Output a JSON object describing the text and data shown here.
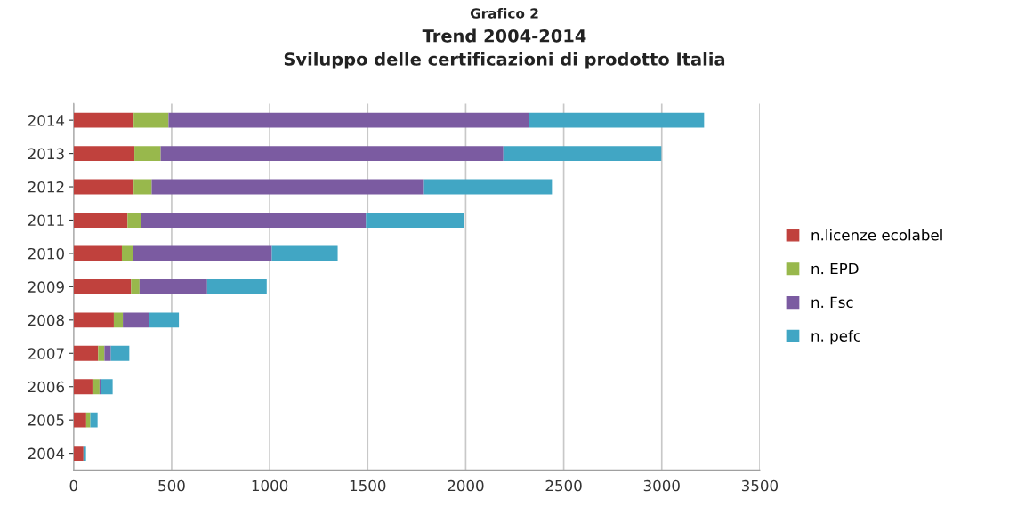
{
  "chart_data": {
    "type": "bar",
    "orientation": "horizontal",
    "stacked": true,
    "title": "Trend 2004-2014\nSviluppo delle certificazioni di prodotto Italia",
    "annotations": [
      "Grafico 2"
    ],
    "categories": [
      "2014",
      "2013",
      "2012",
      "2011",
      "2010",
      "2009",
      "2008",
      "2007",
      "2006",
      "2005",
      "2004"
    ],
    "series": [
      {
        "name": "n.licenze ecolabel",
        "color": "#c0413d",
        "values": [
          306,
          310,
          306,
          275,
          246,
          293,
          205,
          125,
          96,
          64,
          50
        ]
      },
      {
        "name": "n. EPD",
        "color": "#98b84c",
        "values": [
          178,
          134,
          92,
          68,
          56,
          43,
          46,
          32,
          36,
          21,
          null
        ]
      },
      {
        "name": "n. Fsc",
        "color": "#7b5ba1",
        "values": [
          1840,
          1748,
          1385,
          1148,
          709,
          345,
          132,
          33,
          5,
          null,
          0
        ]
      },
      {
        "name": "n. pefc",
        "color": "#41a6c4",
        "values": [
          892,
          806,
          657,
          500,
          336,
          304,
          154,
          94,
          62,
          37,
          13
        ]
      }
    ],
    "xlim": [
      0,
      3500
    ],
    "xticks": [
      0,
      500,
      1000,
      1500,
      2000,
      2500,
      3000,
      3500
    ],
    "grid": "x",
    "legend": "right"
  }
}
